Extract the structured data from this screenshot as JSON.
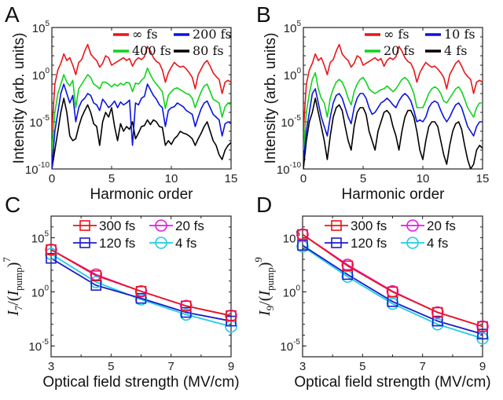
{
  "chart_data": [
    {
      "panel": "A",
      "type": "line",
      "xlabel": "Harmonic order",
      "ylabel": "Intensity (arb. units)",
      "xlim": [
        0,
        15
      ],
      "ylim_log10": [
        -10,
        5
      ],
      "yscale": "log",
      "xticks": [
        "0",
        "5",
        "10",
        "15"
      ],
      "yticks": [
        {
          "base": "10",
          "exp": "-10"
        },
        {
          "base": "10",
          "exp": "-5"
        },
        {
          "base": "10",
          "exp": "0"
        },
        {
          "base": "10",
          "exp": "5"
        }
      ],
      "legend": {
        "placement": "top-right",
        "columns": 2
      },
      "x": [
        0,
        0.25,
        0.5,
        0.75,
        1,
        1.25,
        1.5,
        1.75,
        2,
        2.25,
        2.5,
        2.75,
        3,
        3.25,
        3.5,
        3.75,
        4,
        4.25,
        4.5,
        4.75,
        5,
        5.25,
        5.5,
        5.75,
        6,
        6.25,
        6.5,
        6.75,
        7,
        7.25,
        7.5,
        7.75,
        8,
        8.25,
        8.5,
        8.75,
        9,
        9.25,
        9.5,
        9.75,
        10,
        10.25,
        10.5,
        10.75,
        11,
        11.25,
        11.5,
        11.75,
        12,
        12.25,
        12.5,
        12.75,
        13,
        13.25,
        13.5,
        13.75,
        14,
        14.25,
        14.5,
        14.75,
        15
      ],
      "series": [
        {
          "name": "∞ fs",
          "color": "#e8161b",
          "log10_values": [
            -6,
            -1,
            0.5,
            1.2,
            2.2,
            1.5,
            1.8,
            1.0,
            0.0,
            1.3,
            1.6,
            2.5,
            3.2,
            2.2,
            1.8,
            1.5,
            0.8,
            1.2,
            2.0,
            1.8,
            1.0,
            1.2,
            1.4,
            1.6,
            1.8,
            1.5,
            1.7,
            0.9,
            1.5,
            1.8,
            1.6,
            1.9,
            3.0,
            2.5,
            1.8,
            1.4,
            1.2,
            0.5,
            -0.8,
            0.2,
            0.8,
            1.3,
            1.0,
            0.8,
            0.9,
            0.6,
            0.2,
            -0.3,
            -1.5,
            0.0,
            0.6,
            1.2,
            1.5,
            0.9,
            0.2,
            -0.2,
            -0.5,
            -2.0,
            -0.8,
            -0.6,
            -0.8
          ]
        },
        {
          "name": "200 fs",
          "color": "#0b13e0",
          "log10_values": [
            -10,
            -6,
            -4,
            -2,
            -1,
            -2,
            -3,
            -2.2,
            -5,
            -3.5,
            -2.8,
            -2.5,
            -2.0,
            -2.2,
            -3,
            -3.2,
            -3.8,
            -2.6,
            -3.0,
            -3.5,
            -3.2,
            -2.8,
            -3.5,
            -2.9,
            -3.2,
            -3.0,
            -2.7,
            -7.5,
            -3.0,
            -3.2,
            -2.5,
            -2.3,
            -1.0,
            -1.6,
            -2.2,
            -2.6,
            -3.2,
            -3.5,
            -5.5,
            -3.8,
            -3.5,
            -3.4,
            -3.0,
            -3.2,
            -3.4,
            -3.8,
            -4.0,
            -4.2,
            -5.5,
            -4.5,
            -3.6,
            -3.0,
            -2.8,
            -3.5,
            -4.2,
            -4.5,
            -4.8,
            -6.5,
            -5.2,
            -5.0,
            -5.2
          ]
        },
        {
          "name": "400 fs",
          "color": "#12d11e",
          "log10_values": [
            -8,
            -4,
            -2,
            -1,
            0.0,
            -0.8,
            -1.2,
            -0.6,
            -3.5,
            -1.5,
            -1.0,
            -0.5,
            0.0,
            -0.3,
            -1.0,
            -1.2,
            -1.5,
            -0.8,
            -0.8,
            -1.0,
            -1.3,
            -1.0,
            -1.2,
            -0.9,
            -1.1,
            -0.8,
            -0.9,
            -1.8,
            -0.9,
            -1.0,
            -0.6,
            -0.3,
            0.7,
            0.0,
            -0.6,
            -1.0,
            -1.4,
            -1.8,
            -3.6,
            -2.2,
            -1.8,
            -1.5,
            -1.4,
            -1.6,
            -1.8,
            -2.0,
            -2.1,
            -2.5,
            -3.5,
            -2.6,
            -1.8,
            -1.2,
            -1.0,
            -1.8,
            -2.6,
            -2.8,
            -3.0,
            -4.5,
            -3.4,
            -3.0,
            -3.2
          ]
        },
        {
          "name": "80 fs",
          "color": "#000000",
          "log10_values": [
            -10,
            -8,
            -6,
            -4,
            -2.5,
            -4,
            -6.5,
            -7,
            -6.8,
            -5.5,
            -4.5,
            -3.8,
            -3.2,
            -4,
            -5.2,
            -5.5,
            -7.5,
            -5,
            -4.0,
            -4.5,
            -3.5,
            -5.5,
            -7,
            -5.2,
            -6,
            -5.5,
            -5.8,
            -5,
            -6.8,
            -6.2,
            -5.5,
            -5.4,
            -4.8,
            -5.3,
            -4.8,
            -5.0,
            -5.5,
            -5.6,
            -7.5,
            -7.0,
            -7.4,
            -6.8,
            -6.5,
            -6.0,
            -6.2,
            -6.3,
            -6.5,
            -6.8,
            -7.5,
            -6.8,
            -6.2,
            -5.5,
            -5.0,
            -6.0,
            -7.0,
            -7.5,
            -8.5,
            -9.0,
            -8.0,
            -7.5,
            -7.2
          ]
        }
      ]
    },
    {
      "panel": "B",
      "type": "line",
      "xlabel": "Harmonic order",
      "ylabel": "Intensity (arb. units)",
      "xlim": [
        0,
        15
      ],
      "ylim_log10": [
        -10,
        5
      ],
      "yscale": "log",
      "xticks": [
        "0",
        "5",
        "10",
        "15"
      ],
      "yticks": [
        {
          "base": "10",
          "exp": "-10"
        },
        {
          "base": "10",
          "exp": "-5"
        },
        {
          "base": "10",
          "exp": "0"
        },
        {
          "base": "10",
          "exp": "5"
        }
      ],
      "legend": {
        "placement": "top-right",
        "columns": 2
      },
      "x": [
        0,
        0.25,
        0.5,
        0.75,
        1,
        1.25,
        1.5,
        1.75,
        2,
        2.25,
        2.5,
        2.75,
        3,
        3.25,
        3.5,
        3.75,
        4,
        4.25,
        4.5,
        4.75,
        5,
        5.25,
        5.5,
        5.75,
        6,
        6.25,
        6.5,
        6.75,
        7,
        7.25,
        7.5,
        7.75,
        8,
        8.25,
        8.5,
        8.75,
        9,
        9.25,
        9.5,
        9.75,
        10,
        10.25,
        10.5,
        10.75,
        11,
        11.25,
        11.5,
        11.75,
        12,
        12.25,
        12.5,
        12.75,
        13,
        13.25,
        13.5,
        13.75,
        14,
        14.25,
        14.5,
        14.75,
        15
      ],
      "series": [
        {
          "name": "∞ fs",
          "color": "#e8161b",
          "log10_values": [
            -6,
            -1,
            0.5,
            1.2,
            2.2,
            1.5,
            1.8,
            1.0,
            0.0,
            1.3,
            1.6,
            2.5,
            3.2,
            2.2,
            1.8,
            1.5,
            0.8,
            1.2,
            2.0,
            1.8,
            1.0,
            1.2,
            1.4,
            1.6,
            1.8,
            1.5,
            1.7,
            0.9,
            1.5,
            1.8,
            1.6,
            1.9,
            3.0,
            2.5,
            1.8,
            1.4,
            1.2,
            0.5,
            -0.8,
            0.2,
            0.8,
            1.3,
            1.0,
            0.8,
            0.9,
            0.6,
            0.2,
            -0.3,
            -1.5,
            0.0,
            0.6,
            1.2,
            1.5,
            0.9,
            0.2,
            -0.2,
            -0.5,
            -2.0,
            -0.8,
            -0.6,
            -0.8
          ]
        },
        {
          "name": "10 fs",
          "color": "#0b13e0",
          "log10_values": [
            -9,
            -6,
            -4,
            -2,
            -1.5,
            -3,
            -4.5,
            -5.5,
            -6.5,
            -4.5,
            -3.0,
            -2.2,
            -2.0,
            -2.5,
            -3.5,
            -4.5,
            -5.2,
            -3.5,
            -2.5,
            -2.0,
            -2.0,
            -2.5,
            -3.5,
            -4.2,
            -4.0,
            -3.5,
            -3.0,
            -2.8,
            -2.5,
            -2.8,
            -3.2,
            -3.5,
            -2.8,
            -2.3,
            -2.0,
            -2.3,
            -2.8,
            -3.8,
            -5.0,
            -4.8,
            -5.0,
            -4.5,
            -3.5,
            -3.0,
            -2.8,
            -3.0,
            -3.8,
            -4.5,
            -5.0,
            -4.5,
            -3.8,
            -3.2,
            -3.0,
            -3.5,
            -4.5,
            -5.5,
            -6.0,
            -6.5,
            -5.5,
            -5.0,
            -5.0
          ]
        },
        {
          "name": "20 fs",
          "color": "#12d11e",
          "log10_values": [
            -8,
            -4,
            -2,
            -0.5,
            0.2,
            -1.5,
            -2.5,
            -3.0,
            -4.5,
            -2.5,
            -1.5,
            -0.8,
            -0.5,
            -0.8,
            -1.5,
            -2.5,
            -3.2,
            -1.8,
            -1.0,
            -0.5,
            -0.3,
            -0.8,
            -1.5,
            -1.8,
            -2.0,
            -1.8,
            -1.6,
            -1.5,
            -1.2,
            -1.5,
            -1.8,
            -1.5,
            -1.0,
            -0.5,
            -0.3,
            -0.6,
            -1.2,
            -2.0,
            -3.5,
            -3.5,
            -3.5,
            -2.8,
            -2.0,
            -1.5,
            -1.3,
            -1.5,
            -2.0,
            -2.8,
            -3.0,
            -2.5,
            -2.0,
            -1.5,
            -1.3,
            -1.8,
            -2.6,
            -3.5,
            -4.0,
            -4.5,
            -3.5,
            -3.0,
            -3.0
          ]
        },
        {
          "name": "4 fs",
          "color": "#000000",
          "log10_values": [
            -10,
            -7,
            -5,
            -4,
            -2.5,
            -4,
            -5.5,
            -7,
            -9,
            -6.5,
            -4.5,
            -3.5,
            -3.2,
            -3.8,
            -5.5,
            -7.0,
            -8.0,
            -5.5,
            -4.0,
            -3.5,
            -3.5,
            -4.2,
            -6.0,
            -7.0,
            -8.0,
            -6.0,
            -5.0,
            -4.0,
            -3.8,
            -4.2,
            -5.5,
            -6.5,
            -8.0,
            -6.0,
            -4.5,
            -3.8,
            -3.8,
            -4.5,
            -6.0,
            -8.0,
            -9.0,
            -7.0,
            -5.5,
            -5.0,
            -5.0,
            -5.5,
            -7.0,
            -8.5,
            -9.5,
            -7.5,
            -6.0,
            -5.2,
            -5.0,
            -5.8,
            -7.5,
            -9.0,
            -10,
            -9.5,
            -8.0,
            -7.5,
            -7.8
          ]
        }
      ]
    },
    {
      "panel": "C",
      "type": "line",
      "xlabel": "Optical field strength (MV/cm)",
      "ylabel": "I_7/(I_pump)^7",
      "ylabel_parts": {
        "I": "I",
        "sub": "7",
        "pump": "pump",
        "power": "7"
      },
      "xlim": [
        3,
        9
      ],
      "ylim_log10": [
        -6,
        7
      ],
      "yscale": "log",
      "xticks": [
        "3",
        "5",
        "7",
        "9"
      ],
      "yticks": [
        {
          "base": "10",
          "exp": "-5"
        },
        {
          "base": "10",
          "exp": "0"
        },
        {
          "base": "10",
          "exp": "5"
        }
      ],
      "legend": {
        "placement": "top-right",
        "columns": 2
      },
      "x": [
        3,
        4.5,
        6,
        7.5,
        9
      ],
      "series": [
        {
          "name": "300 fs",
          "color": "#e8161b",
          "marker": "square",
          "log10_values": [
            3.9,
            1.5,
            0.05,
            -1.3,
            -2.2
          ]
        },
        {
          "name": "120 fs",
          "color": "#1c1cc8",
          "marker": "square",
          "log10_values": [
            3.1,
            0.6,
            -0.6,
            -1.9,
            -2.7
          ]
        },
        {
          "name": "20 fs",
          "color": "#e619e6",
          "marker": "circle",
          "log10_values": [
            3.9,
            1.6,
            0.05,
            -1.3,
            -2.2
          ]
        },
        {
          "name": "4 fs",
          "color": "#1ecce6",
          "marker": "circle",
          "log10_values": [
            3.5,
            0.9,
            -0.7,
            -2.1,
            -3.2
          ]
        }
      ]
    },
    {
      "panel": "D",
      "type": "line",
      "xlabel": "Optical field strength (MV/cm)",
      "ylabel": "I_9/(I_pump)^9",
      "ylabel_parts": {
        "I": "I",
        "sub": "9",
        "pump": "pump",
        "power": "9"
      },
      "xlim": [
        3,
        9
      ],
      "ylim_log10": [
        -6,
        7
      ],
      "yscale": "log",
      "xticks": [
        "3",
        "5",
        "7",
        "9"
      ],
      "yticks": [
        {
          "base": "10",
          "exp": "-5"
        },
        {
          "base": "10",
          "exp": "0"
        },
        {
          "base": "10",
          "exp": "5"
        }
      ],
      "legend": {
        "placement": "top-right",
        "columns": 2
      },
      "x": [
        3,
        4.5,
        6,
        7.5,
        9
      ],
      "series": [
        {
          "name": "300 fs",
          "color": "#e8161b",
          "marker": "square",
          "log10_values": [
            5.3,
            2.4,
            0.0,
            -1.9,
            -3.2
          ]
        },
        {
          "name": "120 fs",
          "color": "#1c1cc8",
          "marker": "square",
          "log10_values": [
            4.3,
            1.6,
            -0.9,
            -2.7,
            -3.9
          ]
        },
        {
          "name": "20 fs",
          "color": "#e619e6",
          "marker": "circle",
          "log10_values": [
            5.3,
            2.5,
            0.05,
            -1.9,
            -3.2
          ]
        },
        {
          "name": "4 fs",
          "color": "#1ecce6",
          "marker": "circle",
          "log10_values": [
            4.2,
            1.4,
            -1.1,
            -3.0,
            -4.3
          ]
        }
      ]
    }
  ]
}
